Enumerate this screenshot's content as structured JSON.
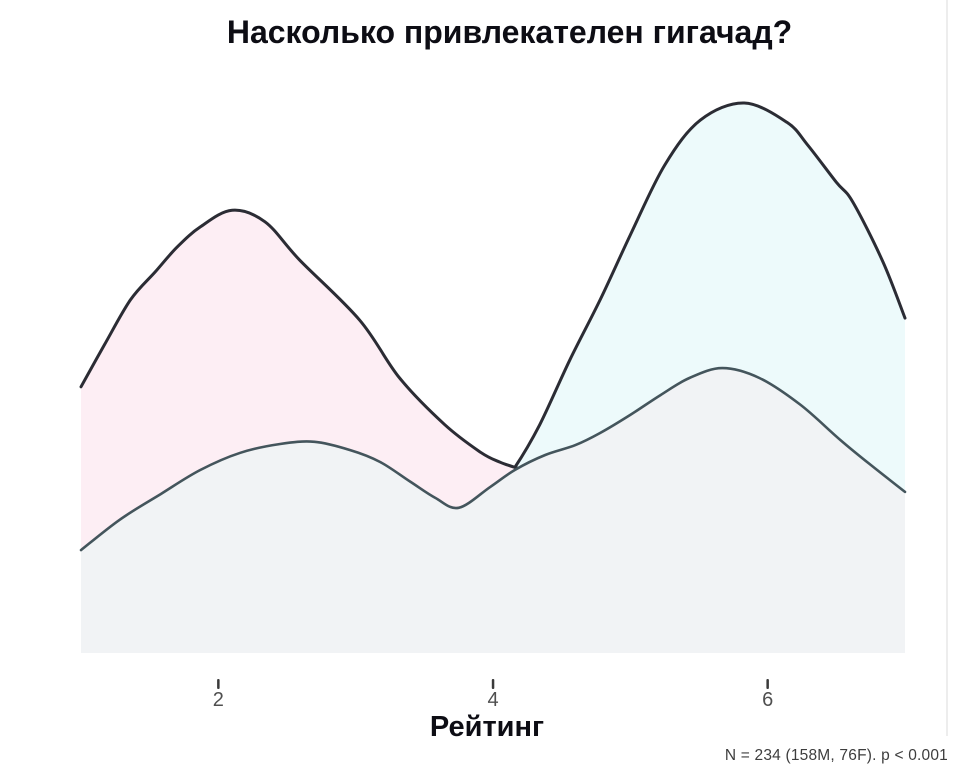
{
  "chart": {
    "title": "Насколько привлекателен гигачад?",
    "xlabel": "Рейтинг",
    "caption": "N = 234 (158M, 76F). p < 0.001"
  },
  "colors": {
    "background": "#ffffff",
    "pink_fill": "#fdeef4",
    "cyan_fill": "#edfafb",
    "gray_fill": "#f1f3f5",
    "density_outline": "#2b2c34",
    "gray_outline": "#44555c",
    "tick_mark": "#3a3a3a",
    "tick_label": "#4f4f4f",
    "title_text": "#0d0d14",
    "caption_text": "#3d3d3d"
  },
  "chart_data": {
    "type": "area",
    "subtype": "overlapping-kde-density",
    "title": "Насколько привлекателен гигачад?",
    "xlabel": "Рейтинг",
    "ylabel": "",
    "annotation": "N = 234 (158M, 76F). p < 0.001",
    "legend_position": "none",
    "grid": false,
    "x_axis": {
      "min": 1,
      "max": 7,
      "ticks": [
        2,
        4,
        6
      ]
    },
    "y_axis": {
      "visible": false,
      "units": "relative density (max = 1)"
    },
    "series": [
      {
        "name": "cyan-density-high-ratings",
        "fill": "#edfafb",
        "stroke": "#2b2c34",
        "stroke_width": 3,
        "peak": [
          5.83,
          1.0
        ],
        "points": [
          [
            3.72,
            0.256
          ],
          [
            3.87,
            0.264
          ],
          [
            4.01,
            0.293
          ],
          [
            4.16,
            0.338
          ],
          [
            4.34,
            0.415
          ],
          [
            4.56,
            0.533
          ],
          [
            4.78,
            0.642
          ],
          [
            5.0,
            0.76
          ],
          [
            5.25,
            0.887
          ],
          [
            5.51,
            0.969
          ],
          [
            5.83,
            1.0
          ],
          [
            6.14,
            0.965
          ],
          [
            6.29,
            0.924
          ],
          [
            6.5,
            0.856
          ],
          [
            6.62,
            0.82
          ],
          [
            6.84,
            0.711
          ],
          [
            7.0,
            0.609
          ]
        ]
      },
      {
        "name": "pink-density-low-ratings",
        "fill": "#fdeef4",
        "stroke": "#2b2c34",
        "stroke_width": 3,
        "peak": [
          2.1,
          0.805
        ],
        "points": [
          [
            1.0,
            0.484
          ],
          [
            1.17,
            0.56
          ],
          [
            1.36,
            0.642
          ],
          [
            1.54,
            0.693
          ],
          [
            1.7,
            0.738
          ],
          [
            1.87,
            0.775
          ],
          [
            2.1,
            0.805
          ],
          [
            2.34,
            0.784
          ],
          [
            2.59,
            0.715
          ],
          [
            3.03,
            0.605
          ],
          [
            3.32,
            0.5
          ],
          [
            3.65,
            0.415
          ],
          [
            3.91,
            0.365
          ],
          [
            4.05,
            0.347
          ],
          [
            4.18,
            0.336
          ]
        ]
      },
      {
        "name": "gray-density-combined",
        "fill": "#f1f3f5",
        "stroke": "#44555c",
        "stroke_width": 2.6,
        "peak": [
          5.67,
          0.518
        ],
        "points": [
          [
            1.0,
            0.187
          ],
          [
            1.28,
            0.242
          ],
          [
            1.58,
            0.289
          ],
          [
            1.87,
            0.333
          ],
          [
            2.16,
            0.364
          ],
          [
            2.45,
            0.38
          ],
          [
            2.7,
            0.384
          ],
          [
            2.96,
            0.369
          ],
          [
            3.18,
            0.347
          ],
          [
            3.4,
            0.311
          ],
          [
            3.58,
            0.282
          ],
          [
            3.75,
            0.264
          ],
          [
            3.98,
            0.302
          ],
          [
            4.16,
            0.333
          ],
          [
            4.38,
            0.36
          ],
          [
            4.6,
            0.378
          ],
          [
            4.78,
            0.4
          ],
          [
            5.0,
            0.433
          ],
          [
            5.22,
            0.469
          ],
          [
            5.43,
            0.5
          ],
          [
            5.67,
            0.518
          ],
          [
            5.94,
            0.5
          ],
          [
            6.24,
            0.451
          ],
          [
            6.53,
            0.387
          ],
          [
            6.75,
            0.342
          ],
          [
            7.0,
            0.293
          ]
        ]
      }
    ]
  }
}
